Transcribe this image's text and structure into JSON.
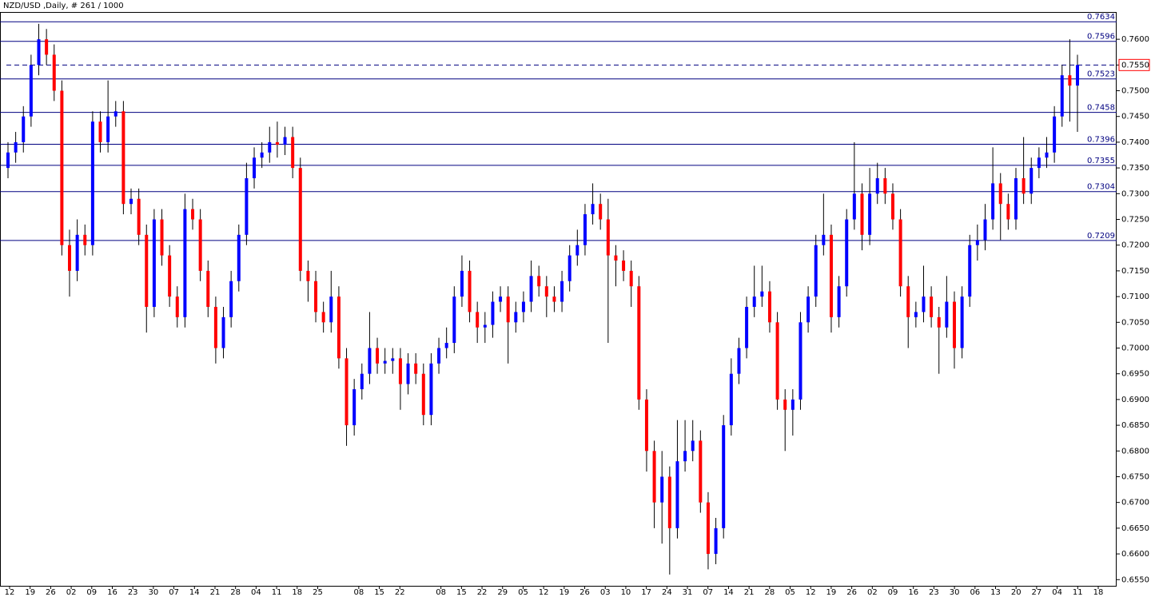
{
  "chart_data": {
    "type": "candlestick",
    "title": "NZD/USD ,Daily, # 261 / 1000",
    "up_color": "#0000ff",
    "down_color": "#ff0000",
    "level_color": "#000080",
    "ylim": [
      0.6538,
      0.7653
    ],
    "yticks": [
      {
        "value": 0.655,
        "label": "0.6550"
      },
      {
        "value": 0.66,
        "label": "0.6600"
      },
      {
        "value": 0.665,
        "label": "0.6650"
      },
      {
        "value": 0.67,
        "label": "0.6700"
      },
      {
        "value": 0.675,
        "label": "0.6750"
      },
      {
        "value": 0.68,
        "label": "0.6800"
      },
      {
        "value": 0.685,
        "label": "0.6850"
      },
      {
        "value": 0.69,
        "label": "0.6900"
      },
      {
        "value": 0.695,
        "label": "0.6950"
      },
      {
        "value": 0.7,
        "label": "0.7000"
      },
      {
        "value": 0.705,
        "label": "0.7050"
      },
      {
        "value": 0.71,
        "label": "0.7100"
      },
      {
        "value": 0.715,
        "label": "0.7150"
      },
      {
        "value": 0.72,
        "label": "0.7200"
      },
      {
        "value": 0.725,
        "label": "0.7250"
      },
      {
        "value": 0.73,
        "label": "0.7300"
      },
      {
        "value": 0.735,
        "label": "0.7350"
      },
      {
        "value": 0.74,
        "label": "0.7400"
      },
      {
        "value": 0.745,
        "label": "0.7450"
      },
      {
        "value": 0.75,
        "label": "0.7500"
      },
      {
        "value": 0.755,
        "label": "0.7550"
      },
      {
        "value": 0.76,
        "label": "0.7600"
      }
    ],
    "levels": [
      {
        "value": 0.7634,
        "label": "0.7634"
      },
      {
        "value": 0.7596,
        "label": "0.7596"
      },
      {
        "value": 0.7523,
        "label": "0.7523"
      },
      {
        "value": 0.7458,
        "label": "0.7458"
      },
      {
        "value": 0.7396,
        "label": "0.7396"
      },
      {
        "value": 0.7355,
        "label": "0.7355"
      },
      {
        "value": 0.7304,
        "label": "0.7304"
      },
      {
        "value": 0.7209,
        "label": "0.7209"
      }
    ],
    "current_price": {
      "value": 0.755,
      "label": "0.7550"
    },
    "date_labels": [
      "12",
      "19",
      "26",
      "02",
      "09",
      "16",
      "23",
      "30",
      "07",
      "14",
      "21",
      "28",
      "04",
      "11",
      "18",
      "25",
      null,
      "08",
      "15",
      "22",
      null,
      "08",
      "15",
      "22",
      "29",
      "05",
      "12",
      "19",
      "26",
      "03",
      "10",
      "17",
      "24",
      "31",
      "07",
      "14",
      "21",
      "28",
      "05",
      "12",
      "19",
      "26",
      "02",
      "09",
      "16",
      "23",
      "30",
      "06",
      "13",
      "20",
      "27",
      "04",
      "11",
      "18"
    ],
    "open": [
      0.735,
      0.738,
      0.74,
      0.745,
      0.755,
      0.76,
      0.757,
      0.75,
      0.72,
      0.715,
      0.722,
      0.72,
      0.744,
      0.74,
      0.745,
      0.746,
      0.728,
      0.729,
      0.722,
      0.708,
      0.725,
      0.718,
      0.71,
      0.706,
      0.727,
      0.725,
      0.715,
      0.708,
      0.7,
      0.706,
      0.713,
      0.722,
      0.733,
      0.737,
      0.738,
      0.74,
      0.7395,
      0.741,
      0.735,
      0.715,
      0.713,
      0.707,
      0.705,
      0.71,
      0.698,
      0.685,
      0.692,
      0.695,
      0.7,
      0.697,
      0.6975,
      0.698,
      0.693,
      0.697,
      0.695,
      0.687,
      0.697,
      0.7,
      0.701,
      0.71,
      0.715,
      0.707,
      0.704,
      0.7045,
      0.709,
      0.71,
      0.705,
      0.707,
      0.709,
      0.714,
      0.712,
      0.71,
      0.709,
      0.713,
      0.718,
      0.72,
      0.726,
      0.728,
      0.725,
      0.718,
      0.717,
      0.715,
      0.712,
      0.69,
      0.68,
      0.67,
      0.675,
      0.665,
      0.678,
      0.68,
      0.682,
      0.67,
      0.66,
      0.665,
      0.685,
      0.695,
      0.7,
      0.708,
      0.71,
      0.711,
      0.705,
      0.69,
      0.688,
      0.69,
      0.705,
      0.71,
      0.72,
      0.722,
      0.706,
      0.712,
      0.725,
      0.73,
      0.722,
      0.73,
      0.733,
      0.73,
      0.725,
      0.712,
      0.706,
      0.707,
      0.71,
      0.706,
      0.704,
      0.709,
      0.7,
      0.71,
      0.72,
      0.721,
      0.725,
      0.732,
      0.728,
      0.725,
      0.733,
      0.73,
      0.735,
      0.737,
      0.738,
      0.745,
      0.753,
      0.751
    ],
    "high": [
      0.74,
      0.742,
      0.747,
      0.757,
      0.763,
      0.762,
      0.759,
      0.752,
      0.723,
      0.725,
      0.724,
      0.746,
      0.746,
      0.752,
      0.748,
      0.748,
      0.731,
      0.731,
      0.724,
      0.727,
      0.727,
      0.72,
      0.712,
      0.73,
      0.729,
      0.727,
      0.717,
      0.71,
      0.708,
      0.715,
      0.724,
      0.736,
      0.739,
      0.74,
      0.743,
      0.744,
      0.743,
      0.743,
      0.737,
      0.717,
      0.715,
      0.709,
      0.715,
      0.712,
      0.7,
      0.694,
      0.697,
      0.707,
      0.702,
      0.7,
      0.7,
      0.7,
      0.699,
      0.699,
      0.697,
      0.699,
      0.702,
      0.704,
      0.712,
      0.718,
      0.717,
      0.709,
      0.707,
      0.711,
      0.712,
      0.712,
      0.709,
      0.711,
      0.717,
      0.716,
      0.714,
      0.712,
      0.715,
      0.72,
      0.723,
      0.728,
      0.732,
      0.73,
      0.729,
      0.72,
      0.719,
      0.717,
      0.714,
      0.692,
      0.682,
      0.68,
      0.677,
      0.686,
      0.686,
      0.686,
      0.684,
      0.672,
      0.667,
      0.687,
      0.698,
      0.702,
      0.71,
      0.716,
      0.716,
      0.713,
      0.707,
      0.692,
      0.692,
      0.707,
      0.712,
      0.722,
      0.73,
      0.724,
      0.714,
      0.727,
      0.74,
      0.732,
      0.735,
      0.736,
      0.735,
      0.732,
      0.727,
      0.714,
      0.709,
      0.716,
      0.712,
      0.708,
      0.714,
      0.711,
      0.712,
      0.722,
      0.724,
      0.728,
      0.739,
      0.734,
      0.73,
      0.735,
      0.741,
      0.737,
      0.739,
      0.741,
      0.747,
      0.755,
      0.76,
      0.757
    ],
    "low": [
      0.733,
      0.736,
      0.738,
      0.743,
      0.753,
      0.755,
      0.748,
      0.718,
      0.71,
      0.713,
      0.718,
      0.718,
      0.738,
      0.738,
      0.743,
      0.726,
      0.726,
      0.72,
      0.703,
      0.706,
      0.716,
      0.708,
      0.704,
      0.704,
      0.723,
      0.713,
      0.706,
      0.697,
      0.698,
      0.704,
      0.711,
      0.72,
      0.731,
      0.735,
      0.736,
      0.737,
      0.7375,
      0.733,
      0.713,
      0.709,
      0.705,
      0.703,
      0.703,
      0.696,
      0.681,
      0.683,
      0.69,
      0.693,
      0.695,
      0.695,
      0.695,
      0.688,
      0.691,
      0.693,
      0.685,
      0.685,
      0.695,
      0.698,
      0.699,
      0.708,
      0.705,
      0.701,
      0.701,
      0.702,
      0.707,
      0.697,
      0.703,
      0.705,
      0.707,
      0.71,
      0.706,
      0.707,
      0.707,
      0.711,
      0.716,
      0.718,
      0.724,
      0.723,
      0.701,
      0.712,
      0.713,
      0.708,
      0.688,
      0.676,
      0.665,
      0.662,
      0.656,
      0.663,
      0.676,
      0.678,
      0.668,
      0.657,
      0.658,
      0.663,
      0.683,
      0.693,
      0.698,
      0.706,
      0.708,
      0.703,
      0.688,
      0.68,
      0.683,
      0.688,
      0.703,
      0.708,
      0.718,
      0.703,
      0.704,
      0.71,
      0.723,
      0.719,
      0.72,
      0.728,
      0.728,
      0.723,
      0.71,
      0.7,
      0.704,
      0.705,
      0.704,
      0.695,
      0.702,
      0.696,
      0.698,
      0.708,
      0.717,
      0.719,
      0.723,
      0.721,
      0.723,
      0.723,
      0.728,
      0.728,
      0.733,
      0.735,
      0.736,
      0.743,
      0.744,
      0.742
    ],
    "close": [
      0.738,
      0.74,
      0.745,
      0.755,
      0.76,
      0.757,
      0.75,
      0.72,
      0.715,
      0.722,
      0.72,
      0.744,
      0.74,
      0.745,
      0.746,
      0.728,
      0.729,
      0.722,
      0.708,
      0.725,
      0.718,
      0.71,
      0.706,
      0.727,
      0.725,
      0.715,
      0.708,
      0.7,
      0.706,
      0.713,
      0.722,
      0.733,
      0.737,
      0.738,
      0.74,
      0.7395,
      0.741,
      0.735,
      0.715,
      0.713,
      0.707,
      0.705,
      0.71,
      0.698,
      0.685,
      0.692,
      0.695,
      0.7,
      0.697,
      0.6975,
      0.698,
      0.693,
      0.697,
      0.695,
      0.687,
      0.697,
      0.7,
      0.701,
      0.71,
      0.715,
      0.707,
      0.704,
      0.7045,
      0.709,
      0.71,
      0.705,
      0.707,
      0.709,
      0.714,
      0.712,
      0.71,
      0.709,
      0.713,
      0.718,
      0.72,
      0.726,
      0.728,
      0.725,
      0.718,
      0.717,
      0.715,
      0.712,
      0.69,
      0.68,
      0.67,
      0.675,
      0.665,
      0.678,
      0.68,
      0.682,
      0.67,
      0.66,
      0.665,
      0.685,
      0.695,
      0.7,
      0.708,
      0.71,
      0.711,
      0.705,
      0.69,
      0.688,
      0.69,
      0.705,
      0.71,
      0.72,
      0.722,
      0.706,
      0.712,
      0.725,
      0.73,
      0.722,
      0.73,
      0.733,
      0.73,
      0.725,
      0.712,
      0.706,
      0.707,
      0.71,
      0.706,
      0.704,
      0.709,
      0.7,
      0.71,
      0.72,
      0.721,
      0.725,
      0.732,
      0.728,
      0.725,
      0.733,
      0.73,
      0.735,
      0.737,
      0.738,
      0.745,
      0.753,
      0.751,
      0.755
    ]
  }
}
